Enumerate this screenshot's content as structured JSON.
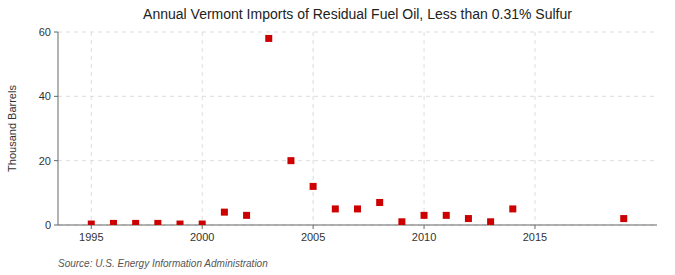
{
  "chart_data": {
    "type": "scatter",
    "title": "Annual Vermont Imports of Residual Fuel Oil, Less than 0.31% Sulfur",
    "ylabel": "Thousand Barrels",
    "source": "Source: U.S. Energy Information Administration",
    "x": [
      1995,
      1996,
      1997,
      1998,
      1999,
      2000,
      2001,
      2002,
      2003,
      2004,
      2005,
      2006,
      2007,
      2008,
      2009,
      2010,
      2011,
      2012,
      2013,
      2014,
      2019
    ],
    "values": [
      0.3,
      0.5,
      0.5,
      0.5,
      0.3,
      0.3,
      4,
      3,
      58,
      20,
      12,
      5,
      5,
      7,
      1,
      3,
      3,
      2,
      1,
      5,
      2
    ],
    "color": "#cc0000",
    "marker": "square",
    "xlim": [
      1993.5,
      2020.5
    ],
    "ylim": [
      0,
      60
    ],
    "xticks": [
      1995,
      2000,
      2005,
      2010,
      2015
    ],
    "yticks": [
      0,
      20,
      40,
      60
    ],
    "grid": true
  }
}
